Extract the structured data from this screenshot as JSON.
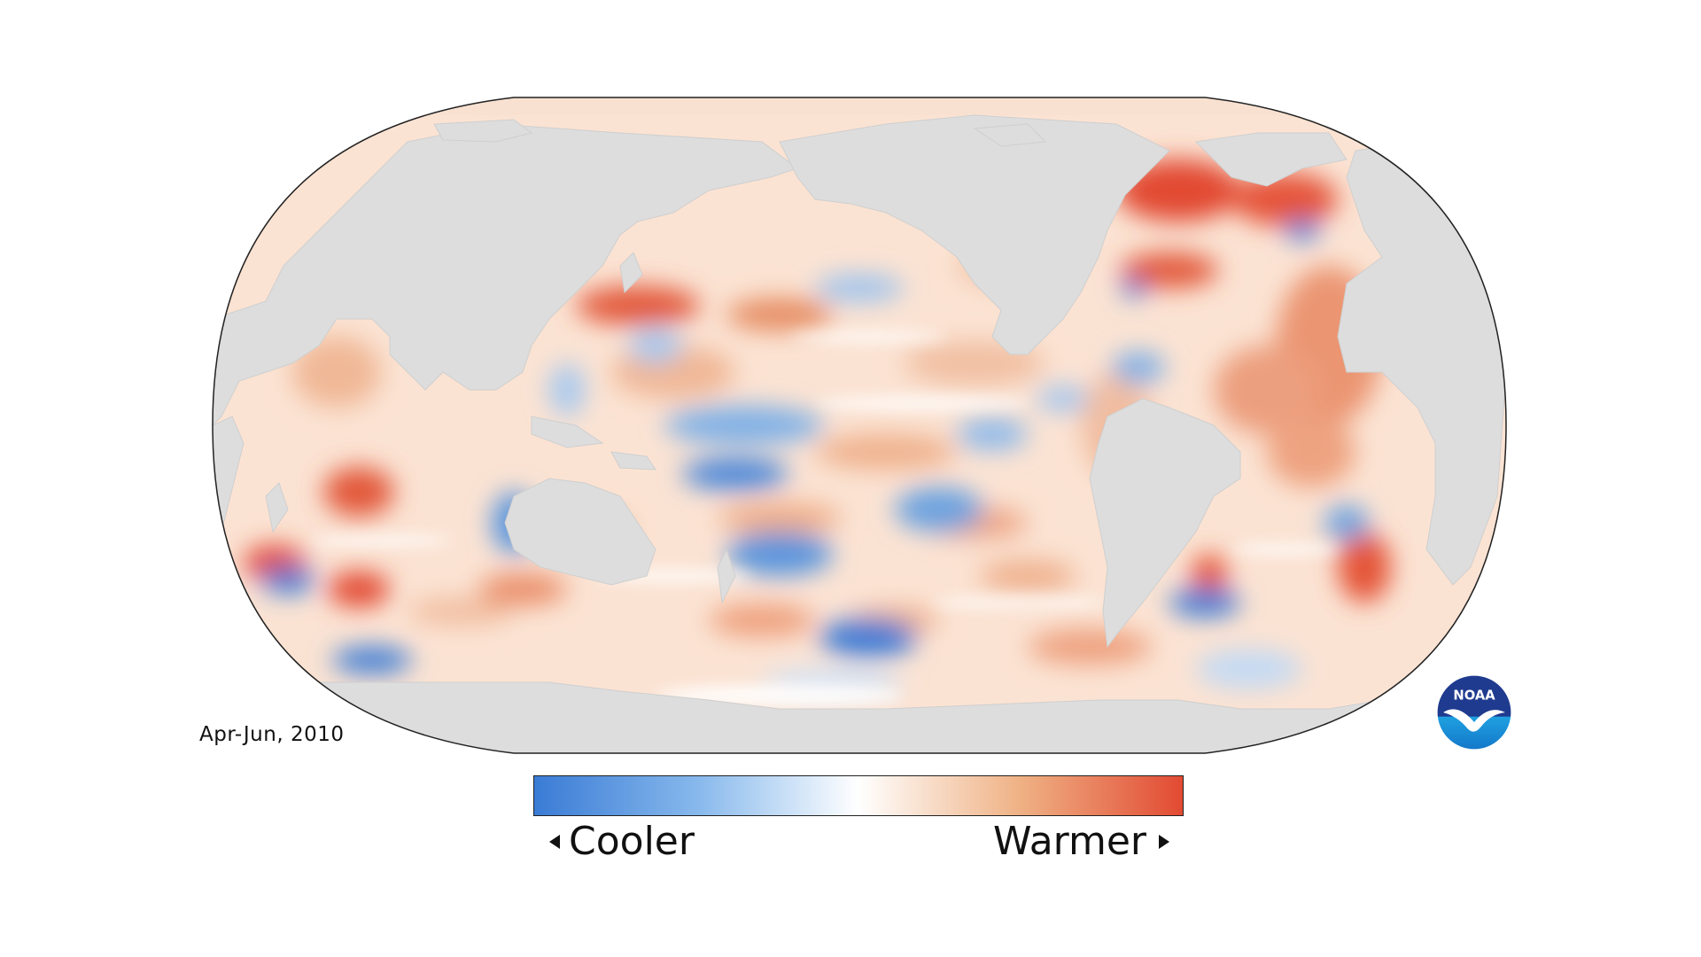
{
  "date_label": "Apr-Jun, 2010",
  "legend": {
    "low_label": "Cooler",
    "high_label": "Warmer",
    "colors": [
      "#3a7bd5",
      "#86b8ec",
      "#ffffff",
      "#efb184",
      "#e24a33"
    ]
  },
  "logo": {
    "text": "NOAA",
    "icon": "noaa-seagull-logo-icon"
  },
  "map": {
    "projection": "Robinson, Pacific-centered",
    "land_color": "#dddddd",
    "outline_color": "#222222"
  }
}
